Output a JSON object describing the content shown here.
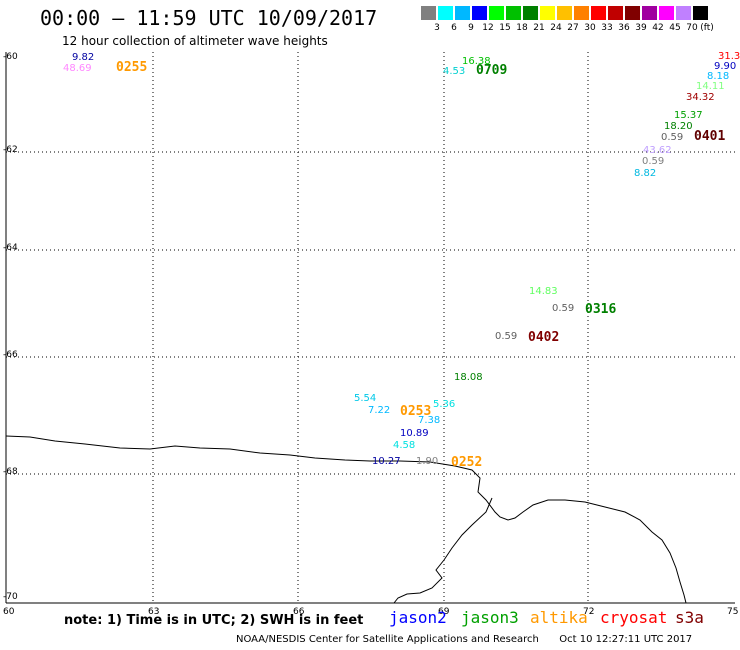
{
  "title": "00:00 – 11:59 UTC 10/09/2017",
  "subtitle": "12 hour collection of altimeter wave heights",
  "legend": {
    "colors": [
      "#808080",
      "#00ffff",
      "#00b8ff",
      "#0000ff",
      "#00ff00",
      "#00c000",
      "#008000",
      "#ffff00",
      "#ffc000",
      "#ff8000",
      "#ff0000",
      "#c00000",
      "#800000",
      "#a000a0",
      "#ff00ff",
      "#c080ff",
      "#000000"
    ],
    "labels": [
      "3",
      "6",
      "9",
      "12",
      "15",
      "18",
      "21",
      "24",
      "27",
      "30",
      "33",
      "36",
      "39",
      "42",
      "45",
      "70",
      "(ft)"
    ]
  },
  "axes": {
    "y_ticks": [
      "-60",
      "-62",
      "-64",
      "-66",
      "-68",
      "-70"
    ],
    "x_ticks": [
      "60",
      "63",
      "66",
      "69",
      "72",
      "75"
    ]
  },
  "annotations": [
    {
      "text": "9.82",
      "color": "#0000a0"
    },
    {
      "text": "48.69",
      "color": "#ff88ff"
    },
    {
      "text": "0255",
      "color": "#ff9900"
    },
    {
      "text": "16.38",
      "color": "#00c000"
    },
    {
      "text": "4.53",
      "color": "#00d0d0"
    },
    {
      "text": "0709",
      "color": "#008000"
    },
    {
      "text": "31.3",
      "color": "#ff0000"
    },
    {
      "text": "9.90",
      "color": "#0000c0"
    },
    {
      "text": "8.18",
      "color": "#00b8ff"
    },
    {
      "text": "14.11",
      "color": "#80ff80"
    },
    {
      "text": "34.32",
      "color": "#a00000"
    },
    {
      "text": "15.37",
      "color": "#00a000"
    },
    {
      "text": "18.20",
      "color": "#008000"
    },
    {
      "text": "0.59",
      "color": "#606060"
    },
    {
      "text": "0401",
      "color": "#600000"
    },
    {
      "text": "43.62",
      "color": "#c0a0ff"
    },
    {
      "text": "0.59",
      "color": "#808080"
    },
    {
      "text": "8.82",
      "color": "#00b8e0"
    },
    {
      "text": "14.83",
      "color": "#60ff60"
    },
    {
      "text": "0.59",
      "color": "#606060"
    },
    {
      "text": "0316",
      "color": "#008000"
    },
    {
      "text": "0.59",
      "color": "#606060"
    },
    {
      "text": "0402",
      "color": "#800000"
    },
    {
      "text": "18.08",
      "color": "#008000"
    },
    {
      "text": "5.54",
      "color": "#00c8e8"
    },
    {
      "text": "5.36",
      "color": "#00e0e0"
    },
    {
      "text": "7.22",
      "color": "#00b8ff"
    },
    {
      "text": "0253",
      "color": "#ff9900"
    },
    {
      "text": "7.38",
      "color": "#00b8ff"
    },
    {
      "text": "10.89",
      "color": "#0000c0"
    },
    {
      "text": "4.58",
      "color": "#00e0e0"
    },
    {
      "text": "10.27",
      "color": "#0000a0"
    },
    {
      "text": "1.90",
      "color": "#808080"
    },
    {
      "text": "0252",
      "color": "#ff9900"
    }
  ],
  "footer": {
    "note": "note: 1) Time is in UTC; 2) SWH is in feet",
    "satellites": [
      {
        "name": "jason2",
        "color": "#0000ff"
      },
      {
        "name": "jason3",
        "color": "#00a000"
      },
      {
        "name": "altika",
        "color": "#ff9900"
      },
      {
        "name": "cryosat",
        "color": "#ff0000"
      },
      {
        "name": "s3a",
        "color": "#800000"
      }
    ],
    "credit": "NOAA/NESDIS Center for Satellite Applications and Research",
    "timestamp": "Oct 10 12:27:11 UTC 2017"
  }
}
